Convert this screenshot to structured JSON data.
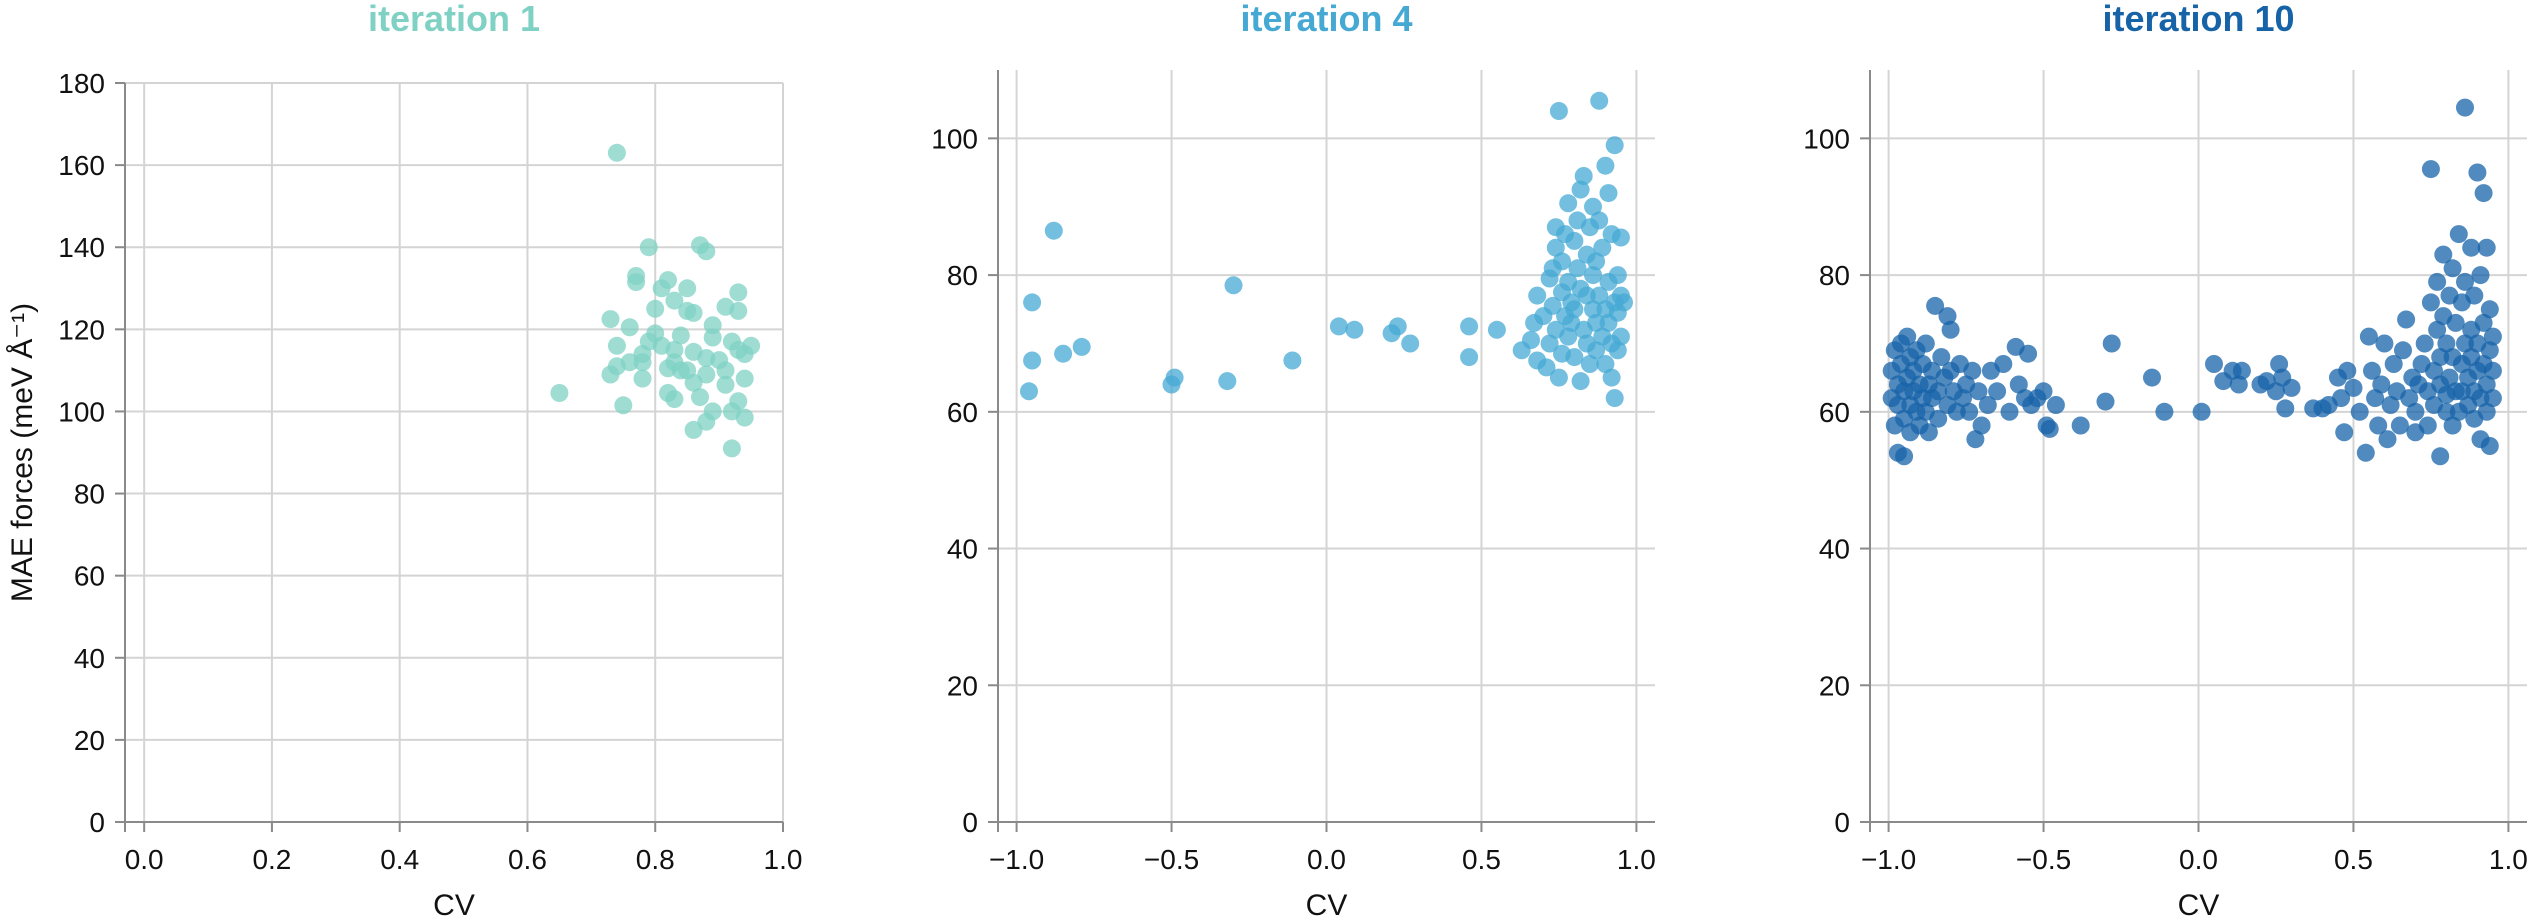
{
  "chart_data": [
    {
      "type": "scatter",
      "title": "iteration 1",
      "title_color": "#7fd1c4",
      "point_color": "#7fd1c4",
      "xlabel": "CV",
      "ylabel": "MAE forces (meV Å⁻¹)",
      "xlim": [
        -0.03,
        1.0
      ],
      "ylim": [
        0,
        180
      ],
      "xticks": [
        0.0,
        0.2,
        0.4,
        0.6,
        0.8,
        1.0
      ],
      "xtick_labels": [
        "0.0",
        "0.2",
        "0.4",
        "0.6",
        "0.8",
        "1.0"
      ],
      "yticks": [
        0,
        20,
        40,
        60,
        80,
        100,
        120,
        140,
        160,
        180
      ],
      "ytick_labels": [
        "0",
        "20",
        "40",
        "60",
        "80",
        "100",
        "120",
        "140",
        "160",
        "180"
      ],
      "grid": true,
      "points": [
        [
          0.65,
          104.5
        ],
        [
          0.74,
          163
        ],
        [
          0.73,
          122.5
        ],
        [
          0.74,
          116
        ],
        [
          0.73,
          109
        ],
        [
          0.74,
          111
        ],
        [
          0.75,
          101.5
        ],
        [
          0.76,
          112
        ],
        [
          0.76,
          120.5
        ],
        [
          0.77,
          133
        ],
        [
          0.77,
          131.5
        ],
        [
          0.78,
          112
        ],
        [
          0.78,
          108
        ],
        [
          0.78,
          114
        ],
        [
          0.79,
          140
        ],
        [
          0.79,
          117
        ],
        [
          0.8,
          125
        ],
        [
          0.8,
          119
        ],
        [
          0.81,
          116
        ],
        [
          0.81,
          130
        ],
        [
          0.82,
          104.5
        ],
        [
          0.82,
          110.5
        ],
        [
          0.82,
          132
        ],
        [
          0.83,
          127
        ],
        [
          0.83,
          115
        ],
        [
          0.83,
          112
        ],
        [
          0.83,
          103
        ],
        [
          0.84,
          110
        ],
        [
          0.84,
          118.5
        ],
        [
          0.85,
          124.5
        ],
        [
          0.85,
          130
        ],
        [
          0.85,
          110
        ],
        [
          0.86,
          107
        ],
        [
          0.86,
          114.5
        ],
        [
          0.86,
          95.5
        ],
        [
          0.86,
          124
        ],
        [
          0.87,
          103.5
        ],
        [
          0.87,
          140.5
        ],
        [
          0.88,
          139
        ],
        [
          0.88,
          113
        ],
        [
          0.88,
          109
        ],
        [
          0.88,
          97.5
        ],
        [
          0.89,
          118
        ],
        [
          0.89,
          121
        ],
        [
          0.89,
          100
        ],
        [
          0.9,
          112.5
        ],
        [
          0.91,
          125.5
        ],
        [
          0.91,
          110
        ],
        [
          0.91,
          106.5
        ],
        [
          0.92,
          91
        ],
        [
          0.92,
          100
        ],
        [
          0.92,
          117
        ],
        [
          0.93,
          115
        ],
        [
          0.93,
          129
        ],
        [
          0.93,
          124.5
        ],
        [
          0.93,
          102.5
        ],
        [
          0.94,
          114
        ],
        [
          0.94,
          98.5
        ],
        [
          0.94,
          108
        ],
        [
          0.95,
          116
        ]
      ]
    },
    {
      "type": "scatter",
      "title": "iteration 4",
      "title_color": "#45a9d4",
      "point_color": "#45a9d4",
      "xlabel": "CV",
      "ylabel": "",
      "xlim": [
        -1.06,
        1.06
      ],
      "ylim": [
        0,
        110
      ],
      "xticks": [
        -1.0,
        -0.5,
        0.0,
        0.5,
        1.0
      ],
      "xtick_labels": [
        "−1.0",
        "−0.5",
        "0.0",
        "0.5",
        "1.0"
      ],
      "yticks": [
        0,
        20,
        40,
        60,
        80,
        100
      ],
      "ytick_labels": [
        "0",
        "20",
        "40",
        "60",
        "80",
        "100"
      ],
      "grid": true,
      "points": [
        [
          -0.96,
          63
        ],
        [
          -0.95,
          76
        ],
        [
          -0.95,
          67.5
        ],
        [
          -0.88,
          86.5
        ],
        [
          -0.85,
          68.5
        ],
        [
          -0.79,
          69.5
        ],
        [
          -0.5,
          64
        ],
        [
          -0.49,
          65
        ],
        [
          -0.32,
          64.5
        ],
        [
          -0.3,
          78.5
        ],
        [
          -0.11,
          67.5
        ],
        [
          0.04,
          72.5
        ],
        [
          0.09,
          72
        ],
        [
          0.21,
          71.5
        ],
        [
          0.23,
          72.5
        ],
        [
          0.27,
          70
        ],
        [
          0.46,
          68
        ],
        [
          0.46,
          72.5
        ],
        [
          0.55,
          72
        ],
        [
          0.63,
          69
        ],
        [
          0.66,
          70.5
        ],
        [
          0.67,
          73
        ],
        [
          0.68,
          67.5
        ],
        [
          0.68,
          77
        ],
        [
          0.7,
          74
        ],
        [
          0.71,
          66.5
        ],
        [
          0.72,
          70
        ],
        [
          0.72,
          79.5
        ],
        [
          0.73,
          75.5
        ],
        [
          0.73,
          81
        ],
        [
          0.74,
          84
        ],
        [
          0.74,
          87
        ],
        [
          0.74,
          72
        ],
        [
          0.75,
          65
        ],
        [
          0.75,
          104
        ],
        [
          0.76,
          68.5
        ],
        [
          0.76,
          77.5
        ],
        [
          0.76,
          82
        ],
        [
          0.77,
          74
        ],
        [
          0.77,
          86
        ],
        [
          0.78,
          71
        ],
        [
          0.78,
          79
        ],
        [
          0.78,
          90.5
        ],
        [
          0.79,
          76
        ],
        [
          0.79,
          73
        ],
        [
          0.8,
          68
        ],
        [
          0.8,
          85
        ],
        [
          0.8,
          75
        ],
        [
          0.81,
          81
        ],
        [
          0.81,
          88
        ],
        [
          0.82,
          64.5
        ],
        [
          0.82,
          92.5
        ],
        [
          0.82,
          78
        ],
        [
          0.83,
          94.5
        ],
        [
          0.83,
          72
        ],
        [
          0.84,
          77
        ],
        [
          0.84,
          83
        ],
        [
          0.84,
          70
        ],
        [
          0.85,
          87
        ],
        [
          0.85,
          67
        ],
        [
          0.86,
          75
        ],
        [
          0.86,
          80
        ],
        [
          0.86,
          90
        ],
        [
          0.87,
          73
        ],
        [
          0.87,
          69
        ],
        [
          0.87,
          82
        ],
        [
          0.88,
          105.5
        ],
        [
          0.88,
          77
        ],
        [
          0.88,
          88
        ],
        [
          0.89,
          71
        ],
        [
          0.89,
          84
        ],
        [
          0.9,
          96
        ],
        [
          0.9,
          75
        ],
        [
          0.9,
          67
        ],
        [
          0.91,
          79
        ],
        [
          0.91,
          92
        ],
        [
          0.91,
          73
        ],
        [
          0.92,
          65
        ],
        [
          0.92,
          70
        ],
        [
          0.92,
          86
        ],
        [
          0.93,
          99
        ],
        [
          0.93,
          76
        ],
        [
          0.93,
          62
        ],
        [
          0.94,
          80
        ],
        [
          0.94,
          69
        ],
        [
          0.94,
          74.5
        ],
        [
          0.95,
          85.5
        ],
        [
          0.95,
          77
        ],
        [
          0.95,
          71
        ],
        [
          0.96,
          76
        ]
      ]
    },
    {
      "type": "scatter",
      "title": "iteration 10",
      "title_color": "#1763a8",
      "point_color": "#1763a8",
      "xlabel": "CV",
      "ylabel": "",
      "xlim": [
        -1.06,
        1.06
      ],
      "ylim": [
        0,
        110
      ],
      "xticks": [
        -1.0,
        -0.5,
        0.0,
        0.5,
        1.0
      ],
      "xtick_labels": [
        "−1.0",
        "−0.5",
        "0.0",
        "0.5",
        "1.0"
      ],
      "yticks": [
        0,
        20,
        40,
        60,
        80,
        100
      ],
      "ytick_labels": [
        "0",
        "20",
        "40",
        "60",
        "80",
        "100"
      ],
      "grid": true,
      "points": [
        [
          -0.99,
          62
        ],
        [
          -0.99,
          66
        ],
        [
          -0.98,
          69
        ],
        [
          -0.98,
          58
        ],
        [
          -0.97,
          64
        ],
        [
          -0.97,
          61
        ],
        [
          -0.97,
          54
        ],
        [
          -0.96,
          67
        ],
        [
          -0.96,
          70
        ],
        [
          -0.95,
          63
        ],
        [
          -0.95,
          53.5
        ],
        [
          -0.95,
          59
        ],
        [
          -0.94,
          65
        ],
        [
          -0.94,
          71
        ],
        [
          -0.93,
          61
        ],
        [
          -0.93,
          68
        ],
        [
          -0.93,
          57
        ],
        [
          -0.92,
          63
        ],
        [
          -0.92,
          66
        ],
        [
          -0.91,
          60
        ],
        [
          -0.91,
          69
        ],
        [
          -0.9,
          64
        ],
        [
          -0.9,
          58
        ],
        [
          -0.89,
          62
        ],
        [
          -0.89,
          67
        ],
        [
          -0.88,
          70
        ],
        [
          -0.88,
          60
        ],
        [
          -0.87,
          64
        ],
        [
          -0.87,
          57
        ],
        [
          -0.86,
          66
        ],
        [
          -0.86,
          62
        ],
        [
          -0.85,
          75.5
        ],
        [
          -0.84,
          63
        ],
        [
          -0.84,
          59
        ],
        [
          -0.83,
          68
        ],
        [
          -0.82,
          65
        ],
        [
          -0.81,
          74
        ],
        [
          -0.81,
          61
        ],
        [
          -0.8,
          72
        ],
        [
          -0.8,
          66
        ],
        [
          -0.79,
          63
        ],
        [
          -0.78,
          60
        ],
        [
          -0.77,
          67
        ],
        [
          -0.76,
          62
        ],
        [
          -0.75,
          64
        ],
        [
          -0.74,
          60
        ],
        [
          -0.73,
          66
        ],
        [
          -0.72,
          56
        ],
        [
          -0.71,
          63
        ],
        [
          -0.7,
          58
        ],
        [
          -0.68,
          61
        ],
        [
          -0.67,
          66
        ],
        [
          -0.65,
          63
        ],
        [
          -0.63,
          67
        ],
        [
          -0.61,
          60
        ],
        [
          -0.59,
          69.5
        ],
        [
          -0.58,
          64
        ],
        [
          -0.56,
          62
        ],
        [
          -0.55,
          68.5
        ],
        [
          -0.54,
          61
        ],
        [
          -0.52,
          62
        ],
        [
          -0.5,
          63
        ],
        [
          -0.49,
          58
        ],
        [
          -0.48,
          57.5
        ],
        [
          -0.46,
          61
        ],
        [
          -0.38,
          58
        ],
        [
          -0.3,
          61.5
        ],
        [
          -0.28,
          70
        ],
        [
          -0.15,
          65
        ],
        [
          -0.11,
          60
        ],
        [
          0.01,
          60
        ],
        [
          0.05,
          67
        ],
        [
          0.08,
          64.5
        ],
        [
          0.11,
          66
        ],
        [
          0.13,
          64
        ],
        [
          0.14,
          66
        ],
        [
          0.2,
          64
        ],
        [
          0.22,
          64.5
        ],
        [
          0.25,
          63
        ],
        [
          0.26,
          67
        ],
        [
          0.27,
          65
        ],
        [
          0.28,
          60.5
        ],
        [
          0.3,
          63.5
        ],
        [
          0.37,
          60.5
        ],
        [
          0.4,
          60.5
        ],
        [
          0.42,
          61
        ],
        [
          0.45,
          65
        ],
        [
          0.46,
          62
        ],
        [
          0.47,
          57
        ],
        [
          0.48,
          66
        ],
        [
          0.5,
          63.5
        ],
        [
          0.52,
          60
        ],
        [
          0.54,
          54
        ],
        [
          0.55,
          71
        ],
        [
          0.56,
          66
        ],
        [
          0.57,
          62
        ],
        [
          0.58,
          58
        ],
        [
          0.59,
          64
        ],
        [
          0.6,
          70
        ],
        [
          0.61,
          56
        ],
        [
          0.62,
          61
        ],
        [
          0.63,
          67
        ],
        [
          0.64,
          63
        ],
        [
          0.65,
          58
        ],
        [
          0.66,
          69
        ],
        [
          0.67,
          73.5
        ],
        [
          0.68,
          62
        ],
        [
          0.69,
          65
        ],
        [
          0.7,
          57
        ],
        [
          0.7,
          60
        ],
        [
          0.71,
          64
        ],
        [
          0.72,
          67
        ],
        [
          0.73,
          70
        ],
        [
          0.74,
          58
        ],
        [
          0.74,
          63
        ],
        [
          0.75,
          76
        ],
        [
          0.75,
          95.5
        ],
        [
          0.76,
          61
        ],
        [
          0.76,
          66
        ],
        [
          0.77,
          72
        ],
        [
          0.77,
          79
        ],
        [
          0.78,
          53.5
        ],
        [
          0.78,
          64
        ],
        [
          0.78,
          68
        ],
        [
          0.79,
          74
        ],
        [
          0.79,
          83
        ],
        [
          0.8,
          60
        ],
        [
          0.8,
          62.5
        ],
        [
          0.8,
          70
        ],
        [
          0.81,
          77
        ],
        [
          0.81,
          65
        ],
        [
          0.82,
          58
        ],
        [
          0.82,
          68
        ],
        [
          0.82,
          81
        ],
        [
          0.83,
          63
        ],
        [
          0.83,
          73
        ],
        [
          0.84,
          86
        ],
        [
          0.84,
          60
        ],
        [
          0.85,
          67
        ],
        [
          0.85,
          76
        ],
        [
          0.85,
          63
        ],
        [
          0.86,
          104.5
        ],
        [
          0.86,
          70
        ],
        [
          0.86,
          79
        ],
        [
          0.87,
          61
        ],
        [
          0.87,
          65
        ],
        [
          0.88,
          84
        ],
        [
          0.88,
          68
        ],
        [
          0.88,
          72
        ],
        [
          0.89,
          59
        ],
        [
          0.89,
          63
        ],
        [
          0.89,
          77
        ],
        [
          0.9,
          95
        ],
        [
          0.9,
          66
        ],
        [
          0.9,
          70
        ],
        [
          0.91,
          56
        ],
        [
          0.91,
          62
        ],
        [
          0.91,
          80
        ],
        [
          0.92,
          92
        ],
        [
          0.92,
          67
        ],
        [
          0.92,
          73
        ],
        [
          0.93,
          84
        ],
        [
          0.93,
          60
        ],
        [
          0.93,
          64
        ],
        [
          0.94,
          75
        ],
        [
          0.94,
          69
        ],
        [
          0.94,
          55
        ],
        [
          0.95,
          71
        ],
        [
          0.95,
          62
        ],
        [
          0.95,
          66
        ]
      ]
    }
  ]
}
